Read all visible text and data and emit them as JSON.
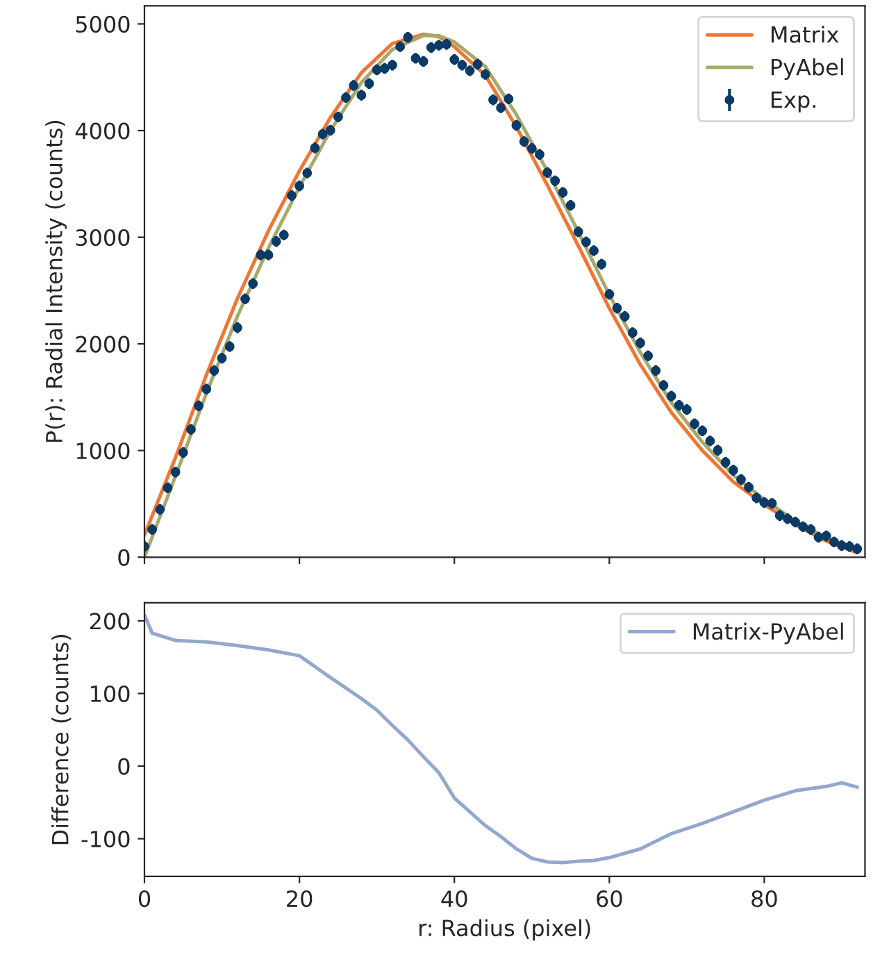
{
  "chart_data": [
    {
      "type": "line",
      "ylabel": "P(r): Radial Intensity (counts)",
      "xlim": [
        0,
        93
      ],
      "xticks": [
        0,
        20,
        40,
        60,
        80
      ],
      "ylim": [
        0,
        5170
      ],
      "yticks": [
        0,
        1000,
        2000,
        3000,
        4000,
        5000
      ],
      "tick_labels": "y",
      "legend": "top right",
      "grid": false,
      "series": [
        {
          "name": "Matrix",
          "color": "#ee7733",
          "x": [
            0,
            4,
            8,
            12,
            16,
            20,
            24,
            28,
            32,
            36,
            38,
            40,
            44,
            48,
            52,
            56,
            60,
            64,
            68,
            72,
            76,
            80,
            84,
            88,
            92
          ],
          "values": [
            208,
            933,
            1711,
            2426,
            3060,
            3622,
            4122,
            4543,
            4816,
            4903,
            4881,
            4786,
            4518,
            4036,
            3488,
            2919,
            2334,
            1806,
            1357,
            1001,
            707,
            493,
            306,
            152,
            41
          ]
        },
        {
          "name": "PyAbel",
          "color": "#a8a86a",
          "x": [
            0,
            4,
            8,
            12,
            16,
            20,
            24,
            28,
            32,
            36,
            38,
            40,
            44,
            48,
            52,
            56,
            60,
            64,
            68,
            72,
            76,
            80,
            84,
            88,
            92
          ],
          "values": [
            0,
            760,
            1540,
            2260,
            2900,
            3470,
            4000,
            4450,
            4760,
            4890,
            4890,
            4830,
            4600,
            4150,
            3620,
            3050,
            2460,
            1920,
            1450,
            1080,
            770,
            540,
            340,
            180,
            70
          ]
        },
        {
          "name": "Exp.",
          "type": "scatter",
          "color": "#0b3a66",
          "marker": "circle",
          "x": [
            0,
            1,
            2,
            3,
            4,
            5,
            6,
            7,
            8,
            9,
            10,
            11,
            12,
            13,
            14,
            15,
            16,
            17,
            18,
            19,
            20,
            21,
            22,
            23,
            24,
            25,
            26,
            27,
            28,
            29,
            30,
            31,
            32,
            33,
            34,
            35,
            36,
            37,
            38,
            39,
            40,
            41,
            42,
            43,
            44,
            45,
            46,
            47,
            48,
            49,
            50,
            51,
            52,
            53,
            54,
            55,
            56,
            57,
            58,
            59,
            60,
            61,
            62,
            63,
            64,
            65,
            66,
            67,
            68,
            69,
            70,
            71,
            72,
            73,
            74,
            75,
            76,
            77,
            78,
            79,
            80,
            81,
            82,
            83,
            84,
            85,
            86,
            87,
            88,
            89,
            90,
            91,
            92
          ],
          "values": [
            100,
            260,
            447,
            651,
            798,
            981,
            1198,
            1419,
            1576,
            1749,
            1866,
            1975,
            2152,
            2422,
            2565,
            2834,
            2834,
            2960,
            3021,
            3390,
            3481,
            3602,
            3837,
            3967,
            4002,
            4128,
            4310,
            4423,
            4332,
            4440,
            4570,
            4583,
            4614,
            4787,
            4874,
            4678,
            4648,
            4779,
            4800,
            4809,
            4666,
            4614,
            4561,
            4622,
            4527,
            4288,
            4214,
            4297,
            4049,
            3897,
            3832,
            3776,
            3607,
            3529,
            3420,
            3299,
            3051,
            2956,
            2874,
            2747,
            2465,
            2335,
            2257,
            2105,
            2009,
            1888,
            1749,
            1611,
            1510,
            1424,
            1384,
            1250,
            1185,
            1090,
            1003,
            889,
            816,
            729,
            655,
            556,
            512,
            504,
            391,
            361,
            330,
            286,
            260,
            187,
            199,
            143,
            109,
            100,
            78
          ],
          "errors": [
            50,
            50,
            50,
            50,
            50,
            50,
            50,
            50,
            50,
            50,
            50,
            50,
            50,
            50,
            50,
            50,
            50,
            50,
            50,
            50,
            50,
            50,
            50,
            50,
            50,
            50,
            50,
            50,
            50,
            50,
            50,
            50,
            50,
            50,
            50,
            50,
            50,
            50,
            50,
            50,
            50,
            50,
            50,
            50,
            50,
            50,
            50,
            50,
            50,
            50,
            50,
            50,
            50,
            50,
            50,
            50,
            50,
            50,
            50,
            50,
            50,
            50,
            50,
            50,
            50,
            50,
            50,
            50,
            50,
            50,
            50,
            50,
            50,
            50,
            50,
            50,
            50,
            50,
            50,
            50,
            50,
            50,
            50,
            50,
            50,
            50,
            50,
            50,
            50,
            50,
            50,
            50,
            50
          ]
        }
      ]
    },
    {
      "type": "line",
      "xlabel": "r: Radius (pixel)",
      "ylabel": "Difference (counts)",
      "xlim": [
        0,
        93
      ],
      "xticks": [
        0,
        20,
        40,
        60,
        80
      ],
      "ylim": [
        -152,
        225
      ],
      "yticks": [
        -100,
        0,
        100,
        200
      ],
      "legend": "top right",
      "grid": false,
      "series": [
        {
          "name": "Matrix-PyAbel",
          "color": "#92a8cc",
          "x": [
            0,
            1,
            4,
            8,
            12,
            16,
            20,
            24,
            28,
            30,
            32,
            34,
            36,
            38,
            40,
            42,
            44,
            46,
            48,
            50,
            52,
            54,
            56,
            58,
            60,
            64,
            68,
            72,
            76,
            80,
            84,
            88,
            90,
            92
          ],
          "values": [
            208,
            183,
            173,
            171,
            166,
            160,
            152,
            122,
            93,
            77,
            56,
            36,
            13,
            -9,
            -44,
            -63,
            -82,
            -97,
            -114,
            -127,
            -132,
            -133,
            -131,
            -130,
            -126,
            -114,
            -93,
            -79,
            -63,
            -47,
            -34,
            -28,
            -23,
            -29
          ]
        }
      ]
    }
  ]
}
